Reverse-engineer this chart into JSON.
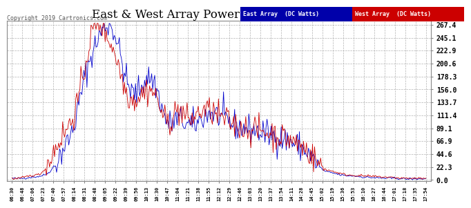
{
  "title": "East & West Array Power Sun Apr 14 18:15",
  "copyright": "Copyright 2019 Cartronics.com",
  "legend_labels": [
    "East Array  (DC Watts)",
    "West Array  (DC Watts)"
  ],
  "legend_east_color": "#0000cc",
  "legend_west_color": "#cc0000",
  "line_east_color": "#0000cc",
  "line_west_color": "#cc0000",
  "yticks": [
    0.0,
    22.3,
    44.6,
    66.9,
    89.1,
    111.4,
    133.7,
    156.0,
    178.3,
    200.6,
    222.9,
    245.1,
    267.4
  ],
  "ylim": [
    0,
    267.4
  ],
  "bg_color": "#ffffff",
  "plot_bg_color": "#ffffff",
  "grid_color": "#aaaaaa",
  "title_color": "#000000",
  "xtick_labels": [
    "06:30",
    "06:48",
    "07:06",
    "07:23",
    "07:40",
    "07:57",
    "08:14",
    "08:31",
    "08:48",
    "09:05",
    "09:22",
    "09:39",
    "09:56",
    "10:13",
    "10:30",
    "10:47",
    "11:04",
    "11:21",
    "11:38",
    "11:55",
    "12:12",
    "12:29",
    "12:46",
    "13:03",
    "13:20",
    "13:37",
    "13:54",
    "14:11",
    "14:28",
    "14:45",
    "15:02",
    "15:19",
    "15:36",
    "15:53",
    "16:10",
    "16:27",
    "16:44",
    "17:01",
    "17:18",
    "17:35",
    "17:54"
  ],
  "east_values": [
    3,
    3,
    5,
    8,
    22,
    55,
    95,
    175,
    230,
    265,
    248,
    175,
    150,
    175,
    155,
    100,
    105,
    95,
    100,
    115,
    110,
    100,
    90,
    88,
    82,
    78,
    72,
    65,
    55,
    38,
    18,
    12,
    8,
    7,
    5,
    4,
    3,
    3,
    2,
    2,
    2
  ],
  "west_values": [
    3,
    4,
    8,
    15,
    48,
    80,
    115,
    190,
    268,
    255,
    215,
    155,
    140,
    155,
    140,
    100,
    120,
    105,
    115,
    120,
    110,
    100,
    92,
    88,
    85,
    80,
    75,
    68,
    58,
    42,
    22,
    15,
    10,
    8,
    7,
    6,
    5,
    4,
    3,
    3,
    2
  ]
}
